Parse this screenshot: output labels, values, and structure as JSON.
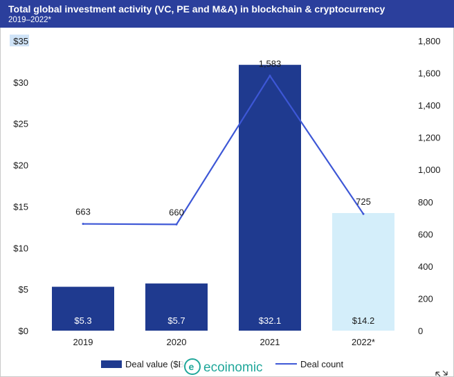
{
  "header": {
    "title": "Total global investment activity (VC, PE and M&A) in blockchain & cryptocurrency",
    "subtitle": "2019–2022*"
  },
  "watermark": {
    "text": "ecoinomic"
  },
  "colors": {
    "header_bg": "#2b3f9c",
    "bar_dark": "#1f3a8f",
    "bar_light": "#d4eefa",
    "line": "#3d57d6",
    "watermark": "#1fa79a"
  },
  "chart_data": {
    "type": "bar",
    "title": "Total global investment activity (VC, PE and M&A) in blockchain & cryptocurrency",
    "subtitle": "2019–2022*",
    "categories": [
      "2019",
      "2020",
      "2021",
      "2022*"
    ],
    "series": [
      {
        "name": "Deal value ($B)",
        "type": "bar",
        "axis": "left",
        "values": [
          5.3,
          5.7,
          32.1,
          14.2
        ],
        "labels": [
          "$5.3",
          "$5.7",
          "$32.1",
          "$14.2"
        ],
        "bar_colors": [
          "#1f3a8f",
          "#1f3a8f",
          "#1f3a8f",
          "#d4eefa"
        ],
        "label_colors": [
          "#ffffff",
          "#ffffff",
          "#ffffff",
          "#1a1a1a"
        ]
      },
      {
        "name": "Deal count",
        "type": "line",
        "axis": "right",
        "values": [
          663,
          660,
          1583,
          725
        ],
        "labels": [
          "663",
          "660",
          "1,583",
          "725"
        ]
      }
    ],
    "left_axis": {
      "ylim": [
        0,
        35
      ],
      "ticks": [
        0,
        5,
        10,
        15,
        20,
        25,
        30,
        35
      ],
      "tick_labels": [
        "$0",
        "$5",
        "$10",
        "$15",
        "$20",
        "$25",
        "$30",
        "$35"
      ]
    },
    "right_axis": {
      "ylim": [
        0,
        1800
      ],
      "ticks": [
        0,
        200,
        400,
        600,
        800,
        1000,
        1200,
        1400,
        1600,
        1800
      ],
      "tick_labels": [
        "0",
        "200",
        "400",
        "600",
        "800",
        "1,000",
        "1,200",
        "1,400",
        "1,600",
        "1,800"
      ]
    },
    "grid": false,
    "legend": {
      "position": "bottom-center",
      "entries": [
        "Deal value ($B)",
        "Deal count"
      ],
      "visible_text": [
        "Deal value ($B",
        "Deal count"
      ]
    }
  }
}
